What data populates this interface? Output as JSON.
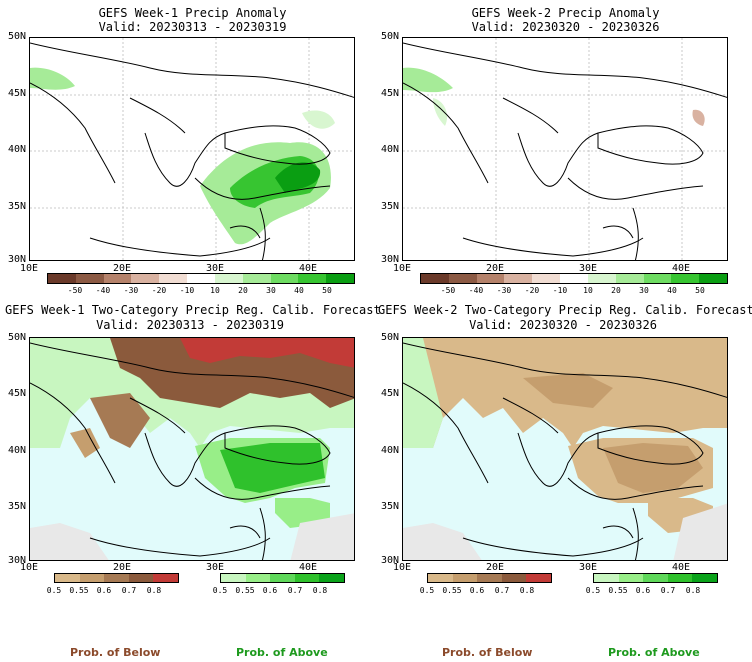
{
  "panels": [
    {
      "title": "GEFS Week-1 Precip Anomaly",
      "valid": "Valid: 20230313 - 20230319"
    },
    {
      "title": "GEFS Week-2 Precip Anomaly",
      "valid": "Valid: 20230320 - 20230326"
    },
    {
      "title": "GEFS Week-1 Two-Category Precip Reg. Calib. Forecast",
      "valid": "Valid: 20230313 - 20230319"
    },
    {
      "title": "GEFS Week-2 Two-Category Precip Reg. Calib. Forecast",
      "valid": "Valid: 20230320 - 20230326"
    }
  ],
  "axes": {
    "lat_labels": [
      "50N",
      "45N",
      "40N",
      "35N",
      "30N"
    ],
    "lon_labels": [
      "10E",
      "20E",
      "30E",
      "40E"
    ]
  },
  "anomaly_colorbar": {
    "labels": [
      "-50",
      "-40",
      "-30",
      "-20",
      "-10",
      "10",
      "20",
      "30",
      "40",
      "50"
    ],
    "colors": [
      "#6b3a2a",
      "#8c5a44",
      "#b5826b",
      "#d9b2a1",
      "#f1ddd3",
      "#ffffff",
      "#d8f6d0",
      "#a6eb98",
      "#6edc62",
      "#37c531",
      "#0a9e12"
    ]
  },
  "prob_below_colorbar": {
    "labels": [
      "0.5",
      "0.55",
      "0.6",
      "0.7",
      "0.8"
    ],
    "colors": [
      "#d9b98a",
      "#c59e6e",
      "#a67a54",
      "#8b5a3c",
      "#c23b37"
    ]
  },
  "prob_above_colorbar": {
    "labels": [
      "0.5",
      "0.55",
      "0.6",
      "0.7",
      "0.8"
    ],
    "colors": [
      "#c8f6c0",
      "#98ee88",
      "#5fd85a",
      "#2fc12c",
      "#0aa31a"
    ]
  },
  "footer": {
    "below_label": "Prob. of Below",
    "above_label": "Prob. of Above",
    "below_color": "#8b4a2b",
    "above_color": "#1e9a1e"
  }
}
